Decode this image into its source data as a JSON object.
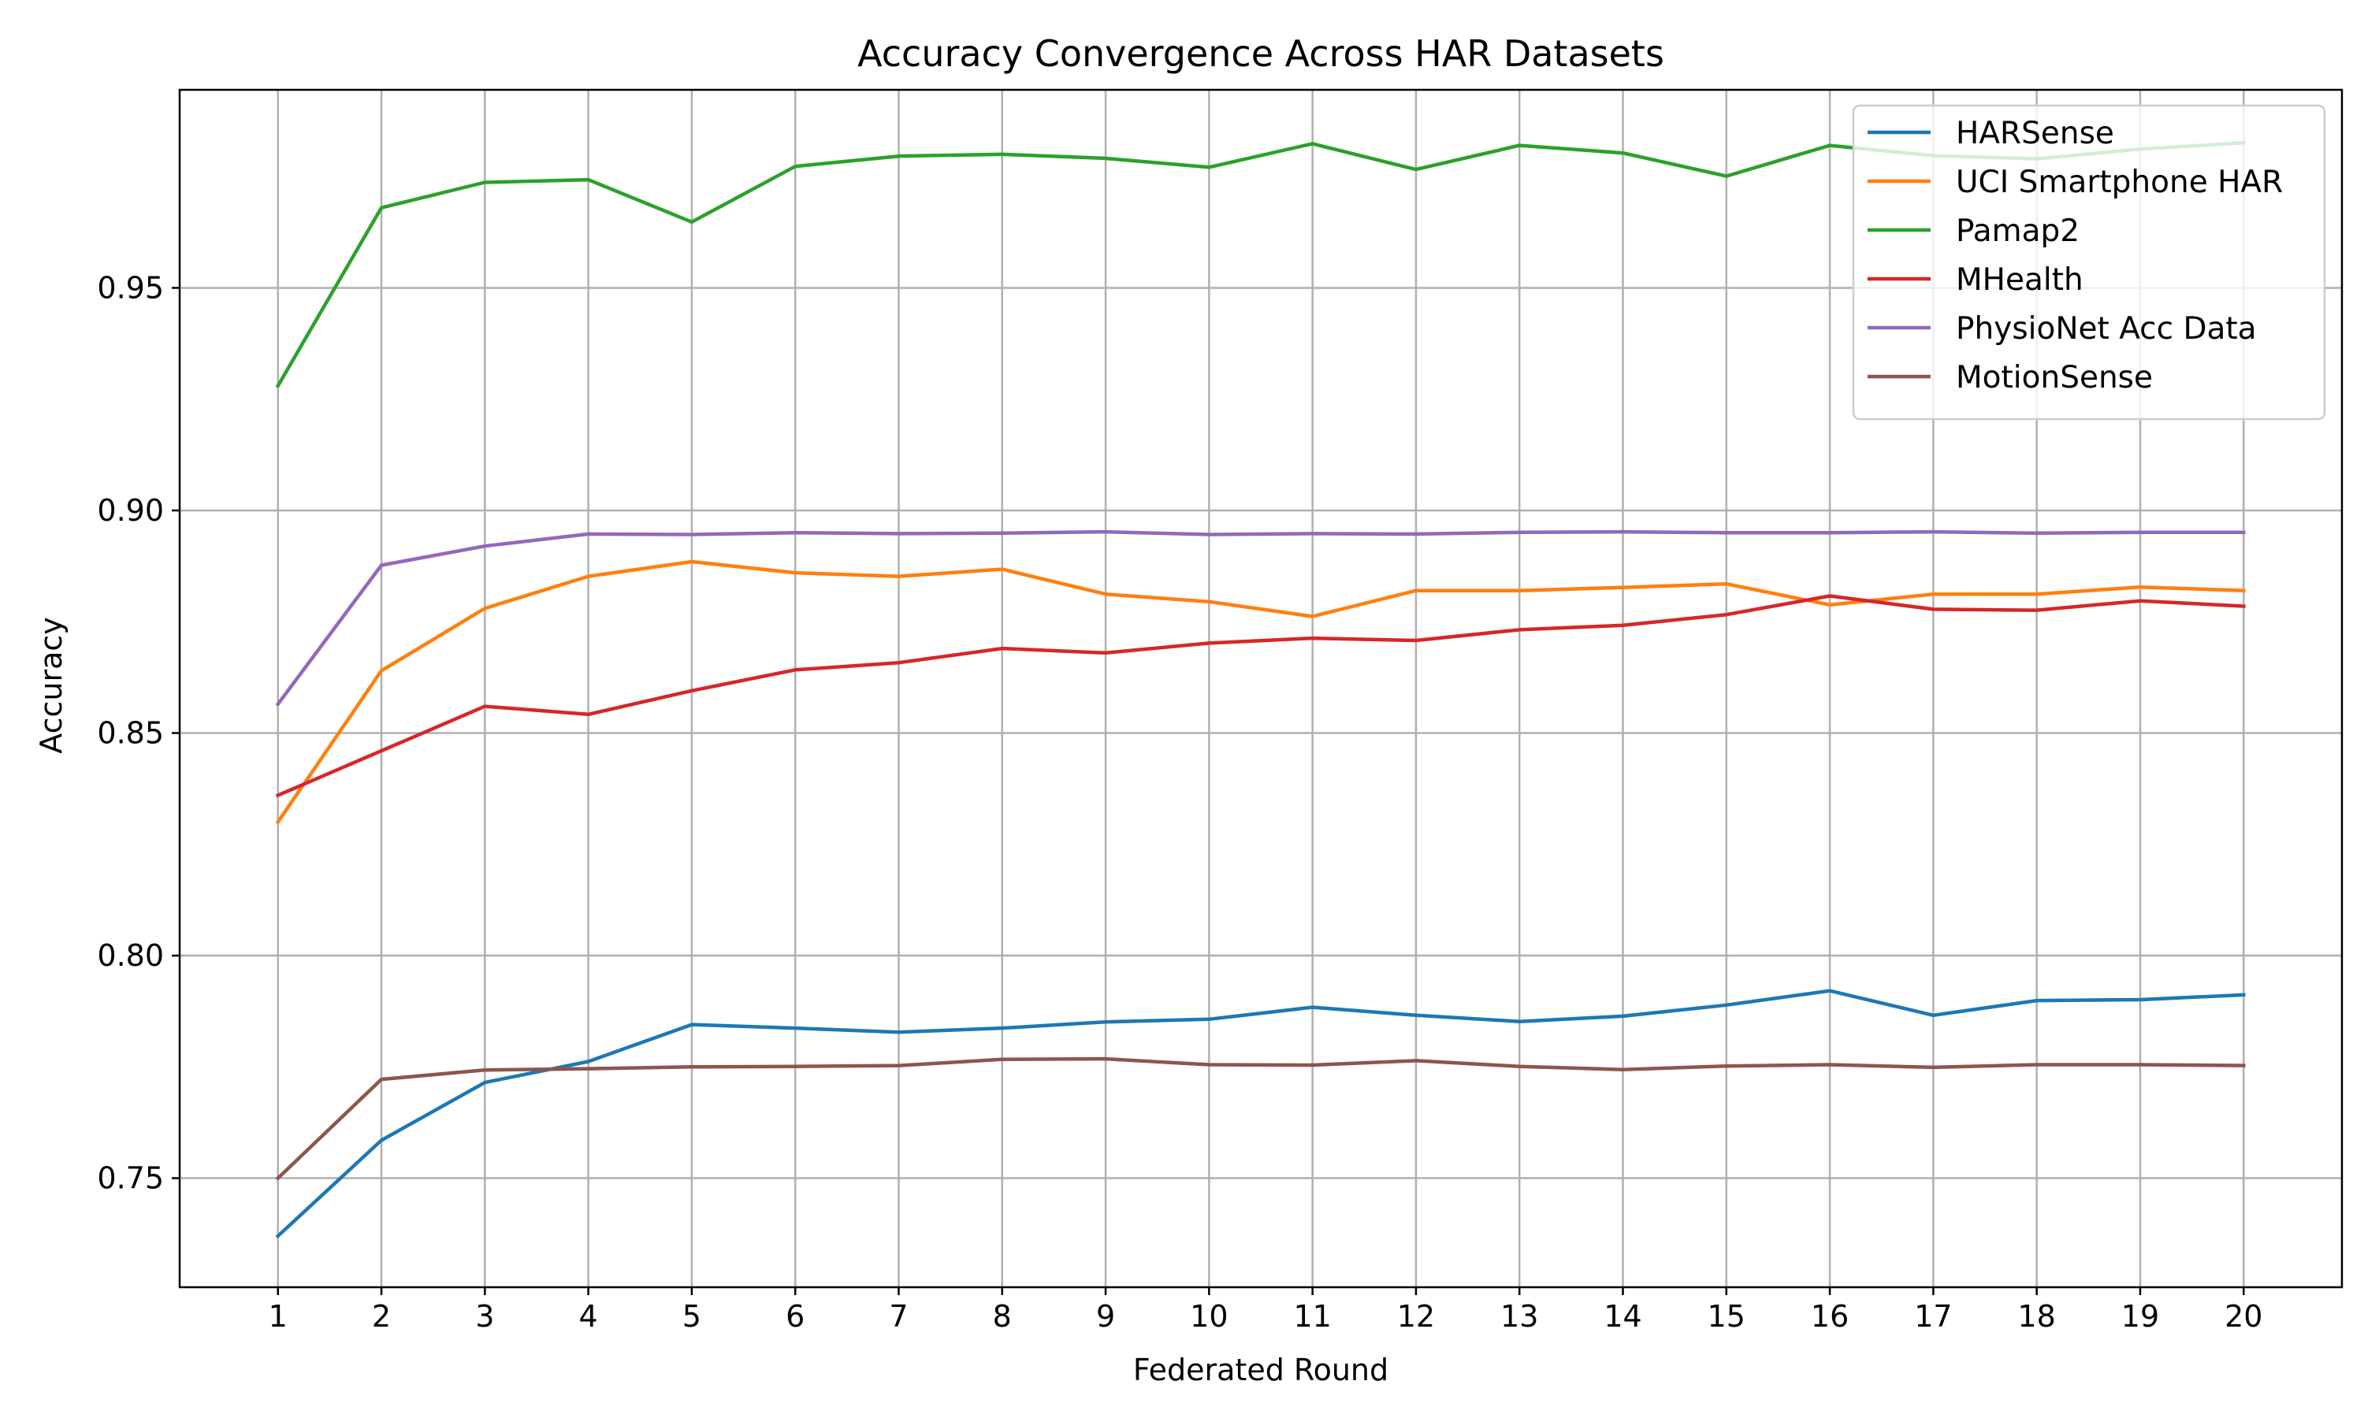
{
  "chart_data": {
    "type": "line",
    "title": "Accuracy Convergence Across HAR Datasets",
    "xlabel": "Federated Round",
    "ylabel": "Accuracy",
    "x": [
      1,
      2,
      3,
      4,
      5,
      6,
      7,
      8,
      9,
      10,
      11,
      12,
      13,
      14,
      15,
      16,
      17,
      18,
      19,
      20
    ],
    "xlim": [
      0.05,
      20.95
    ],
    "ylim": [
      0.7255,
      0.9945
    ],
    "yticks": [
      0.75,
      0.8,
      0.85,
      0.9,
      0.95
    ],
    "ytick_labels": [
      "0.75",
      "0.80",
      "0.85",
      "0.90",
      "0.95"
    ],
    "xtick_labels": [
      "1",
      "2",
      "3",
      "4",
      "5",
      "6",
      "7",
      "8",
      "9",
      "10",
      "11",
      "12",
      "13",
      "14",
      "15",
      "16",
      "17",
      "18",
      "19",
      "20"
    ],
    "grid": true,
    "legend_position": "top-right",
    "series": [
      {
        "name": "HARSense",
        "color": "#1f77b4",
        "values": [
          0.737,
          0.7585,
          0.7715,
          0.7762,
          0.7845,
          0.7837,
          0.7828,
          0.7837,
          0.7851,
          0.7857,
          0.7884,
          0.7866,
          0.7852,
          0.7864,
          0.7889,
          0.7921,
          0.7866,
          0.7899,
          0.7901,
          0.7912
        ]
      },
      {
        "name": "UCI Smartphone HAR",
        "color": "#ff7f0e",
        "values": [
          0.83,
          0.864,
          0.878,
          0.8852,
          0.8885,
          0.886,
          0.8852,
          0.8868,
          0.8812,
          0.8795,
          0.8762,
          0.882,
          0.882,
          0.8827,
          0.8835,
          0.8788,
          0.8812,
          0.8812,
          0.8828,
          0.882
        ]
      },
      {
        "name": "Pamap2",
        "color": "#2ca02c",
        "values": [
          0.928,
          0.968,
          0.9737,
          0.9743,
          0.9648,
          0.9773,
          0.9796,
          0.98,
          0.9791,
          0.9771,
          0.9824,
          0.9766,
          0.982,
          0.9803,
          0.9751,
          0.982,
          0.9797,
          0.979,
          0.9812,
          0.9826
        ]
      },
      {
        "name": "MHealth",
        "color": "#d62728",
        "values": [
          0.836,
          0.846,
          0.856,
          0.8542,
          0.8595,
          0.8642,
          0.8658,
          0.869,
          0.868,
          0.8702,
          0.8713,
          0.8708,
          0.8732,
          0.8742,
          0.8766,
          0.8808,
          0.8778,
          0.8776,
          0.8797,
          0.8785
        ]
      },
      {
        "name": "PhysioNet Acc Data",
        "color": "#9467bd",
        "values": [
          0.8565,
          0.8877,
          0.892,
          0.8947,
          0.8946,
          0.895,
          0.8948,
          0.8949,
          0.8952,
          0.8946,
          0.8948,
          0.8947,
          0.8951,
          0.8952,
          0.895,
          0.895,
          0.8952,
          0.8949,
          0.8951,
          0.8951
        ]
      },
      {
        "name": "MotionSense",
        "color": "#8c564b",
        "values": [
          0.75,
          0.7722,
          0.7743,
          0.7746,
          0.775,
          0.7751,
          0.7753,
          0.7767,
          0.7768,
          0.7755,
          0.7754,
          0.7764,
          0.7751,
          0.7744,
          0.7752,
          0.7755,
          0.7749,
          0.7755,
          0.7755,
          0.7753
        ]
      }
    ]
  }
}
